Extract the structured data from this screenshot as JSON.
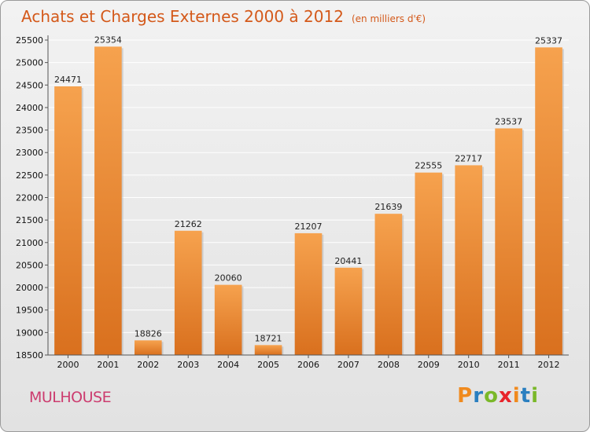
{
  "header": {
    "title": "Achats et Charges Externes 2000 à 2012",
    "unit": "(en milliers d'€)"
  },
  "footer": {
    "city": "MULHOUSE",
    "brand": "Proxiti"
  },
  "colors": {
    "bar_top": "#f6a24e",
    "bar_bottom": "#d9701e",
    "title": "#d4591a",
    "city": "#cc3c6f",
    "brand_letters": [
      "#f08a1e",
      "#2a7fc0",
      "#7ab829",
      "#e8242b",
      "#f08a1e",
      "#2a7fc0",
      "#7ab829"
    ]
  },
  "chart_data": {
    "type": "bar",
    "title": "Achats et Charges Externes 2000 à 2012",
    "subtitle": "(en milliers d'€)",
    "xlabel": "",
    "ylabel": "",
    "categories": [
      "2000",
      "2001",
      "2002",
      "2003",
      "2004",
      "2005",
      "2006",
      "2007",
      "2008",
      "2009",
      "2010",
      "2011",
      "2012"
    ],
    "values": [
      24471,
      25354,
      18826,
      21262,
      20060,
      18721,
      21207,
      20441,
      21639,
      22555,
      22717,
      23537,
      25337
    ],
    "ylim": [
      18500,
      25500
    ],
    "yticks": [
      18500,
      19000,
      19500,
      20000,
      20500,
      21000,
      21500,
      22000,
      22500,
      23000,
      23500,
      24000,
      24500,
      25000,
      25500
    ],
    "grid": true,
    "legend": "none"
  }
}
